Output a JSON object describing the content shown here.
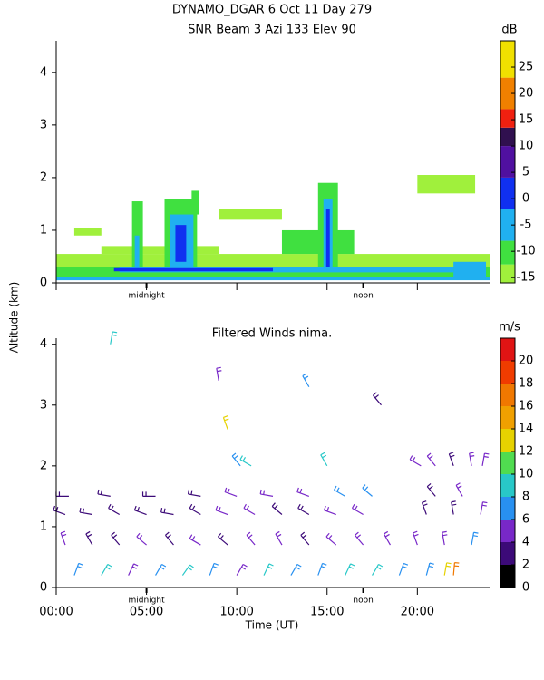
{
  "chart_data": [
    {
      "type": "heatmap",
      "title": "DYNAMO_DGAR    6 Oct 11 Day 279",
      "subtitle": "SNR Beam 3 Azi 133 Elev 90",
      "y_label": "Altitude (km)",
      "xlim": [
        0,
        24
      ],
      "ylim": [
        0,
        4.6
      ],
      "yticks": [
        0,
        1,
        2,
        3,
        4
      ],
      "annotations": [
        {
          "x": 5,
          "text": "midnight"
        },
        {
          "x": 17,
          "text": "noon"
        }
      ],
      "colorbar": {
        "label": "dB",
        "lim": [
          -16,
          30
        ],
        "ticks": [
          -15,
          -10,
          -5,
          0,
          5,
          10,
          15,
          20,
          25
        ],
        "bands": [
          {
            "from": -16,
            "to": -12.5,
            "color": "#a0f03c"
          },
          {
            "from": -12.5,
            "to": -8,
            "color": "#40e040"
          },
          {
            "from": -8,
            "to": -2,
            "color": "#20b0f0"
          },
          {
            "from": -2,
            "to": 4,
            "color": "#1030f0"
          },
          {
            "from": 4,
            "to": 10,
            "color": "#5010a0"
          },
          {
            "from": 10,
            "to": 13.5,
            "color": "#30104f"
          },
          {
            "from": 13.5,
            "to": 17,
            "color": "#f02010"
          },
          {
            "from": 17,
            "to": 23,
            "color": "#f08000"
          },
          {
            "from": 23,
            "to": 30,
            "color": "#f0e000"
          }
        ]
      },
      "patches": [
        {
          "x": [
            0,
            24
          ],
          "y": [
            0.3,
            0.55
          ],
          "value": -14
        },
        {
          "x": [
            0,
            24
          ],
          "y": [
            0.1,
            0.3
          ],
          "value": -10
        },
        {
          "x": [
            0,
            24
          ],
          "y": [
            0.05,
            0.12
          ],
          "value": -4
        },
        {
          "x": [
            2.5,
            9
          ],
          "y": [
            0.55,
            0.7
          ],
          "value": -14
        },
        {
          "x": [
            12.5,
            16.5
          ],
          "y": [
            0.55,
            1.0
          ],
          "value": -12
        },
        {
          "x": [
            4.2,
            4.8
          ],
          "y": [
            0.3,
            1.55
          ],
          "value": -11
        },
        {
          "x": [
            4.35,
            4.6
          ],
          "y": [
            0.3,
            0.9
          ],
          "value": -5
        },
        {
          "x": [
            6,
            7.8
          ],
          "y": [
            0.3,
            1.6
          ],
          "value": -11
        },
        {
          "x": [
            6.3,
            7.6
          ],
          "y": [
            0.3,
            1.3
          ],
          "value": -5
        },
        {
          "x": [
            6.6,
            7.2
          ],
          "y": [
            0.4,
            1.1
          ],
          "value": 1
        },
        {
          "x": [
            7.5,
            7.9
          ],
          "y": [
            1.3,
            1.75
          ],
          "value": -12
        },
        {
          "x": [
            14.5,
            15.6
          ],
          "y": [
            0.3,
            1.9
          ],
          "value": -11
        },
        {
          "x": [
            14.8,
            15.3
          ],
          "y": [
            0.3,
            1.6
          ],
          "value": -5
        },
        {
          "x": [
            14.95,
            15.15
          ],
          "y": [
            0.3,
            1.4
          ],
          "value": 1
        },
        {
          "x": [
            9,
            12.5
          ],
          "y": [
            1.2,
            1.4
          ],
          "value": -14
        },
        {
          "x": [
            1,
            2.5
          ],
          "y": [
            0.9,
            1.05
          ],
          "value": -14
        },
        {
          "x": [
            20,
            23.2
          ],
          "y": [
            1.7,
            2.05
          ],
          "value": -14
        },
        {
          "x": [
            3.5,
            22
          ],
          "y": [
            0.2,
            0.3
          ],
          "value": -5
        },
        {
          "x": [
            3.2,
            12
          ],
          "y": [
            0.22,
            0.28
          ],
          "value": 1
        },
        {
          "x": [
            22,
            23.8
          ],
          "y": [
            0.1,
            0.4
          ],
          "value": -5
        }
      ]
    },
    {
      "type": "barbs",
      "title": "Filtered Winds nima.",
      "x_label": "Time (UT)",
      "xlim": [
        0,
        24
      ],
      "ylim": [
        0,
        4.1
      ],
      "yticks": [
        0,
        1,
        2,
        3,
        4
      ],
      "xticks": [
        {
          "value": 0,
          "label": "00:00"
        },
        {
          "value": 5,
          "label": "05:00"
        },
        {
          "value": 10,
          "label": "10:00"
        },
        {
          "value": 15,
          "label": "15:00"
        },
        {
          "value": 20,
          "label": "20:00"
        }
      ],
      "annotations": [
        {
          "x": 5,
          "text": "midnight"
        },
        {
          "x": 17,
          "text": "noon"
        }
      ],
      "colorbar": {
        "label": "m/s",
        "lim": [
          0,
          22
        ],
        "ticks": [
          0,
          2,
          4,
          6,
          8,
          10,
          12,
          14,
          16,
          18,
          20
        ],
        "bands": [
          {
            "from": 0,
            "to": 2,
            "color": "#000000"
          },
          {
            "from": 2,
            "to": 4,
            "color": "#3c0a78"
          },
          {
            "from": 4,
            "to": 6,
            "color": "#7828c8"
          },
          {
            "from": 6,
            "to": 8,
            "color": "#2890f0"
          },
          {
            "from": 8,
            "to": 10,
            "color": "#28c8c8"
          },
          {
            "from": 10,
            "to": 12,
            "color": "#50dc50"
          },
          {
            "from": 12,
            "to": 14,
            "color": "#e6d200"
          },
          {
            "from": 14,
            "to": 16,
            "color": "#f0a000"
          },
          {
            "from": 16,
            "to": 18,
            "color": "#f07800"
          },
          {
            "from": 18,
            "to": 20,
            "color": "#f03c00"
          },
          {
            "from": 20,
            "to": 22,
            "color": "#e01414"
          }
        ]
      },
      "barbs": [
        {
          "x": 1,
          "y": 0.2,
          "speed": 6,
          "dir": 20
        },
        {
          "x": 2.5,
          "y": 0.2,
          "speed": 8,
          "dir": 30
        },
        {
          "x": 4,
          "y": 0.2,
          "speed": 5,
          "dir": 25
        },
        {
          "x": 5.5,
          "y": 0.2,
          "speed": 7,
          "dir": 30
        },
        {
          "x": 7,
          "y": 0.2,
          "speed": 8,
          "dir": 35
        },
        {
          "x": 8.5,
          "y": 0.2,
          "speed": 6,
          "dir": 20
        },
        {
          "x": 10,
          "y": 0.2,
          "speed": 5,
          "dir": 30
        },
        {
          "x": 11.5,
          "y": 0.2,
          "speed": 8,
          "dir": 25
        },
        {
          "x": 13,
          "y": 0.2,
          "speed": 7,
          "dir": 30
        },
        {
          "x": 14.5,
          "y": 0.2,
          "speed": 6,
          "dir": 20
        },
        {
          "x": 16,
          "y": 0.2,
          "speed": 9,
          "dir": 25
        },
        {
          "x": 17.5,
          "y": 0.2,
          "speed": 8,
          "dir": 30
        },
        {
          "x": 19,
          "y": 0.2,
          "speed": 7,
          "dir": 20
        },
        {
          "x": 20.5,
          "y": 0.2,
          "speed": 6,
          "dir": 15
        },
        {
          "x": 21.5,
          "y": 0.2,
          "speed": 12,
          "dir": 10
        },
        {
          "x": 22,
          "y": 0.2,
          "speed": 16,
          "dir": 5
        },
        {
          "x": 0.5,
          "y": 0.7,
          "speed": 4,
          "dir": 340
        },
        {
          "x": 2,
          "y": 0.7,
          "speed": 3,
          "dir": 330
        },
        {
          "x": 3.5,
          "y": 0.7,
          "speed": 3,
          "dir": 320
        },
        {
          "x": 5,
          "y": 0.7,
          "speed": 4,
          "dir": 310
        },
        {
          "x": 6.5,
          "y": 0.7,
          "speed": 3,
          "dir": 320
        },
        {
          "x": 8,
          "y": 0.7,
          "speed": 4,
          "dir": 300
        },
        {
          "x": 9.5,
          "y": 0.7,
          "speed": 3,
          "dir": 310
        },
        {
          "x": 11,
          "y": 0.7,
          "speed": 4,
          "dir": 320
        },
        {
          "x": 12.5,
          "y": 0.7,
          "speed": 4,
          "dir": 330
        },
        {
          "x": 14,
          "y": 0.7,
          "speed": 3,
          "dir": 320
        },
        {
          "x": 15.5,
          "y": 0.7,
          "speed": 4,
          "dir": 310
        },
        {
          "x": 17,
          "y": 0.7,
          "speed": 5,
          "dir": 320
        },
        {
          "x": 18.5,
          "y": 0.7,
          "speed": 4,
          "dir": 330
        },
        {
          "x": 20,
          "y": 0.7,
          "speed": 4,
          "dir": 340
        },
        {
          "x": 21.5,
          "y": 0.7,
          "speed": 5,
          "dir": 350
        },
        {
          "x": 23,
          "y": 0.7,
          "speed": 6,
          "dir": 10
        },
        {
          "x": 0.5,
          "y": 1.2,
          "speed": 3,
          "dir": 290
        },
        {
          "x": 2,
          "y": 1.2,
          "speed": 2,
          "dir": 280
        },
        {
          "x": 3.5,
          "y": 1.2,
          "speed": 3,
          "dir": 300
        },
        {
          "x": 5,
          "y": 1.2,
          "speed": 3,
          "dir": 290
        },
        {
          "x": 6.5,
          "y": 1.2,
          "speed": 2,
          "dir": 280
        },
        {
          "x": 8,
          "y": 1.2,
          "speed": 3,
          "dir": 300
        },
        {
          "x": 9.5,
          "y": 1.2,
          "speed": 4,
          "dir": 290
        },
        {
          "x": 11,
          "y": 1.2,
          "speed": 4,
          "dir": 300
        },
        {
          "x": 12.5,
          "y": 1.2,
          "speed": 3,
          "dir": 310
        },
        {
          "x": 14,
          "y": 1.2,
          "speed": 3,
          "dir": 300
        },
        {
          "x": 15.5,
          "y": 1.2,
          "speed": 4,
          "dir": 290
        },
        {
          "x": 17,
          "y": 1.2,
          "speed": 4,
          "dir": 300
        },
        {
          "x": 20.5,
          "y": 1.2,
          "speed": 3,
          "dir": 340
        },
        {
          "x": 22,
          "y": 1.2,
          "speed": 3,
          "dir": 350
        },
        {
          "x": 23.5,
          "y": 1.2,
          "speed": 5,
          "dir": 10
        },
        {
          "x": 0.7,
          "y": 1.5,
          "speed": 3,
          "dir": 270
        },
        {
          "x": 3,
          "y": 1.5,
          "speed": 3,
          "dir": 280
        },
        {
          "x": 5.5,
          "y": 1.5,
          "speed": 3,
          "dir": 270
        },
        {
          "x": 8,
          "y": 1.5,
          "speed": 3,
          "dir": 280
        },
        {
          "x": 10,
          "y": 1.5,
          "speed": 4,
          "dir": 290
        },
        {
          "x": 12,
          "y": 1.5,
          "speed": 4,
          "dir": 280
        },
        {
          "x": 14,
          "y": 1.5,
          "speed": 4,
          "dir": 290
        },
        {
          "x": 16,
          "y": 1.5,
          "speed": 6,
          "dir": 300
        },
        {
          "x": 17.5,
          "y": 1.5,
          "speed": 6,
          "dir": 310
        },
        {
          "x": 21,
          "y": 1.5,
          "speed": 3,
          "dir": 320
        },
        {
          "x": 22.5,
          "y": 1.5,
          "speed": 4,
          "dir": 330
        },
        {
          "x": 10.2,
          "y": 2.0,
          "speed": 7,
          "dir": 320
        },
        {
          "x": 20.2,
          "y": 2.0,
          "speed": 4,
          "dir": 300
        },
        {
          "x": 21,
          "y": 2.0,
          "speed": 4,
          "dir": 320
        },
        {
          "x": 22,
          "y": 2.0,
          "speed": 3,
          "dir": 340
        },
        {
          "x": 23,
          "y": 2.0,
          "speed": 4,
          "dir": 350
        },
        {
          "x": 23.6,
          "y": 2.0,
          "speed": 5,
          "dir": 10
        },
        {
          "x": 3,
          "y": 4.0,
          "speed": 8,
          "dir": 10
        },
        {
          "x": 9,
          "y": 3.4,
          "speed": 5,
          "dir": 350
        },
        {
          "x": 9.5,
          "y": 2.6,
          "speed": 13,
          "dir": 340
        },
        {
          "x": 14,
          "y": 3.3,
          "speed": 6,
          "dir": 330
        },
        {
          "x": 18,
          "y": 3.0,
          "speed": 3,
          "dir": 320
        },
        {
          "x": 10.8,
          "y": 2.0,
          "speed": 8,
          "dir": 300
        },
        {
          "x": 15,
          "y": 2.0,
          "speed": 8,
          "dir": 330
        }
      ]
    }
  ]
}
